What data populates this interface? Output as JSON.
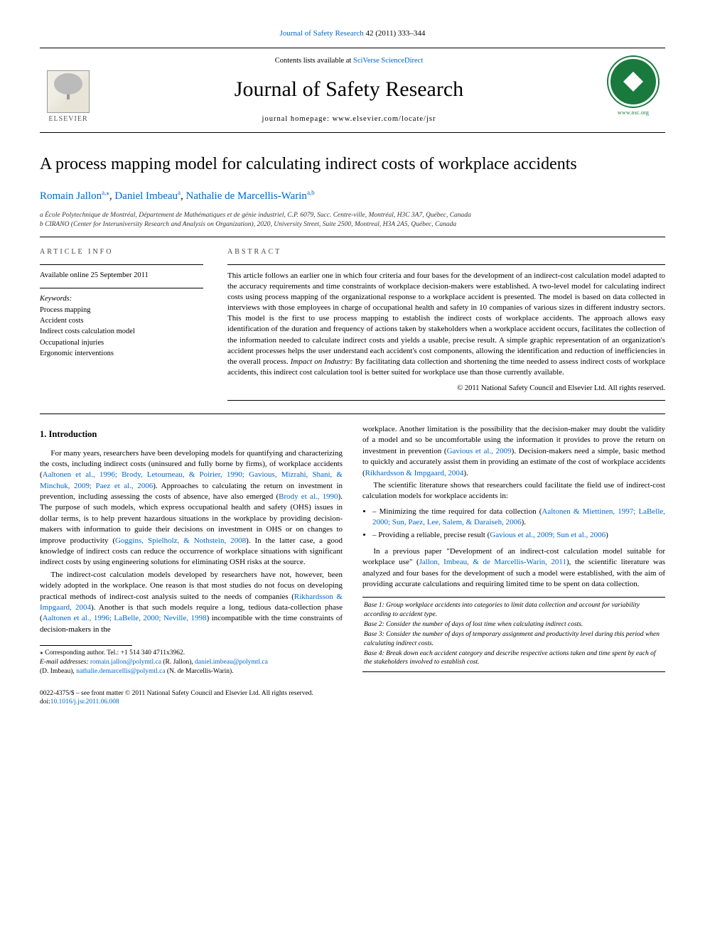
{
  "journal_ref": {
    "journal_link": "Journal of Safety Research",
    "citation_tail": " 42 (2011) 333–344"
  },
  "masthead": {
    "elsevier_label": "ELSEVIER",
    "contents_prefix": "Contents lists available at ",
    "contents_link": "SciVerse ScienceDirect",
    "journal_title": "Journal of Safety Research",
    "homepage_prefix": "journal homepage: ",
    "homepage_url": "www.elsevier.com/locate/jsr",
    "nsc_url": "www.nsc.org"
  },
  "article": {
    "title": "A process mapping model for calculating indirect costs of workplace accidents",
    "authors": {
      "a1_name": "Romain Jallon",
      "a1_sup": "a,",
      "a1_star": "⁎",
      "sep1": ", ",
      "a2_name": "Daniel Imbeau",
      "a2_sup": "a",
      "sep2": ", ",
      "a3_name": "Nathalie de Marcellis-Warin",
      "a3_sup": "a,b"
    },
    "affiliations": {
      "a": "a École Polytechnique de Montréal, Département de Mathématiques et de génie industriel, C.P. 6079, Succ. Centre-ville, Montréal, H3C 3A7, Québec, Canada",
      "b": "b CIRANO (Center for Interuniversity Research and Analysis on Organization), 2020, University Street, Suite 2500, Montreal, H3A 2A5, Québec, Canada"
    }
  },
  "info": {
    "label": "ARTICLE INFO",
    "history": "Available online 25 September 2011",
    "kw_head": "Keywords:",
    "keywords": [
      "Process mapping",
      "Accident costs",
      "Indirect costs calculation model",
      "Occupational injuries",
      "Ergonomic interventions"
    ]
  },
  "abstract": {
    "label": "ABSTRACT",
    "body_pre": "This article follows an earlier one in which four criteria and four bases for the development of an indirect-cost calculation model adapted to the accuracy requirements and time constraints of workplace decision-makers were established. A two-level model for calculating indirect costs using process mapping of the organizational response to a workplace accident is presented. The model is based on data collected in interviews with those employees in charge of occupational health and safety in 10 companies of various sizes in different industry sectors. This model is the first to use process mapping to establish the indirect costs of workplace accidents. The approach allows easy identification of the duration and frequency of actions taken by stakeholders when a workplace accident occurs, facilitates the collection of the information needed to calculate indirect costs and yields a usable, precise result. A simple graphic representation of an organization's accident processes helps the user understand each accident's cost components, allowing the identification and reduction of inefficiencies in the overall process. ",
    "impact_label": "Impact on Industry:",
    "body_post": " By facilitating data collection and shortening the time needed to assess indirect costs of workplace accidents, this indirect cost calculation tool is better suited for workplace use than those currently available.",
    "copyright": "© 2011 National Safety Council and Elsevier Ltd. All rights reserved."
  },
  "body": {
    "h_intro": "1. Introduction",
    "p1_a": "For many years, researchers have been developing models for quantifying and characterizing the costs, including indirect costs (uninsured and fully borne by firms), of workplace accidents (",
    "p1_cite1": "Aaltonen et al., 1996; Brody, Letourneau, & Poirier, 1990; Gavious, Mizrahi, Shani, & Minchuk, 2009; Paez et al., 2006",
    "p1_b": "). Approaches to calculating the return on investment in prevention, including assessing the costs of absence, have also emerged (",
    "p1_cite2": "Brody et al., 1990",
    "p1_c": "). The purpose of such models, which express occupational health and safety (OHS) issues in dollar terms, is to help prevent hazardous situations in the workplace by providing decision-makers with information to guide their decisions on investment in OHS or on changes to improve productivity (",
    "p1_cite3": "Goggins, Spielholz, & Nothstein, 2008",
    "p1_d": "). In the latter case, a good knowledge of indirect costs can reduce the occurrence of workplace situations with significant indirect costs by using engineering solutions for eliminating OSH risks at the source.",
    "p2_a": "The indirect-cost calculation models developed by researchers have not, however, been widely adopted in the workplace. One reason is that most studies do not focus on developing practical methods of indirect-cost analysis suited to the needs of companies (",
    "p2_cite1": "Rikhardsson & Impgaard, 2004",
    "p2_b": "). Another is that such models require a long, tedious data-collection phase (",
    "p2_cite2": "Aaltonen et al., 1996; LaBelle, 2000; Neville, 1998",
    "p2_c": ") incompatible with the time constraints of decision-makers in the ",
    "p3_a": "workplace. Another limitation is the possibility that the decision-maker may doubt the validity of a model and so be uncomfortable using the information it provides to prove the return on investment in prevention (",
    "p3_cite1": "Gavious et al., 2009",
    "p3_b": "). Decision-makers need a simple, basic method to quickly and accurately assist them in providing an estimate of the cost of workplace accidents (",
    "p3_cite2": "Rikhardsson & Impgaard, 2004",
    "p3_c": ").",
    "p4": "The scientific literature shows that researchers could facilitate the field use of indirect-cost calculation models for workplace accidents in:",
    "li1_a": "Minimizing the time required for data collection (",
    "li1_cite": "Aaltonen & Miettinen, 1997; LaBelle, 2000; Sun, Paez, Lee, Salem, & Daraiseh, 2006",
    "li1_b": ").",
    "li2_a": "Providing a reliable, precise result (",
    "li2_cite": "Gavious et al., 2009; Sun et al., 2006",
    "li2_b": ")",
    "p5_a": "In a previous paper \"Development of an indirect-cost calculation model suitable for workplace use\" (",
    "p5_cite": "Jallon, Imbeau, & de Marcellis-Warin, 2011",
    "p5_b": "), the scientific literature was analyzed and four bases for the development of such a model were established, with the aim of providing accurate calculations and requiring limited time to be spent on data collection."
  },
  "bases": {
    "b1": "Base 1: Group workplace accidents into categories to limit data collection and account for variability according to accident type.",
    "b2": "Base 2: Consider the number of days of lost time when calculating indirect costs.",
    "b3": "Base 3: Consider the number of days of temporary assignment and productivity level during this period when calculating indirect costs.",
    "b4": "Base 4: Break down each accident category and describe respective actions taken and time spent by each of the stakeholders involved to establish cost."
  },
  "footnotes": {
    "corr": "⁎ Corresponding author. Tel.: +1 514 340 4711x3962.",
    "email_label": "E-mail addresses: ",
    "e1": "romain.jallon@polymtl.ca",
    "n1": " (R. Jallon), ",
    "e2": "daniel.imbeau@polymtl.ca",
    "n2": " (D. Imbeau), ",
    "e3": "nathalie.demarcellis@polymtl.ca",
    "n3": " (N. de Marcellis-Warin)."
  },
  "bottom": {
    "front": "0022-4375/$ – see front matter © 2011 National Safety Council and Elsevier Ltd. All rights reserved.",
    "doi_pre": "doi:",
    "doi": "10.1016/j.jsr.2011.06.008"
  },
  "colors": {
    "link": "#0066cc",
    "text": "#000000",
    "nsc_green": "#1a7a3e",
    "rule": "#000000"
  },
  "typography": {
    "body_font": "Georgia / Times-like serif",
    "title_pt": 24,
    "journal_title_pt": 30,
    "body_pt": 11,
    "footnote_pt": 9.5
  }
}
